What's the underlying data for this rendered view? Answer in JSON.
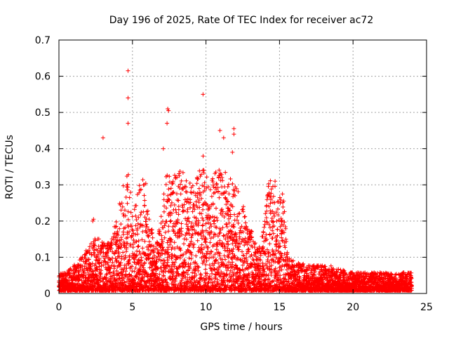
{
  "chart_data": {
    "type": "scatter",
    "title": "Day 196 of 2025, Rate Of TEC Index for receiver ac72",
    "xlabel": "GPS time / hours",
    "ylabel": "ROTI / TECUs",
    "xlim": [
      0,
      25
    ],
    "ylim": [
      0,
      0.7
    ],
    "xticks": [
      "0",
      "5",
      "10",
      "15",
      "20",
      "25"
    ],
    "yticks": [
      "0",
      "0.1",
      "0.2",
      "0.3",
      "0.4",
      "0.5",
      "0.6",
      "0.7"
    ],
    "grid": true,
    "marker": "plus",
    "color": "#ff0000",
    "envelope": [
      [
        0.0,
        0.05
      ],
      [
        0.5,
        0.05
      ],
      [
        1.0,
        0.07
      ],
      [
        1.5,
        0.09
      ],
      [
        2.0,
        0.12
      ],
      [
        2.5,
        0.15
      ],
      [
        3.0,
        0.14
      ],
      [
        3.5,
        0.13
      ],
      [
        4.0,
        0.22
      ],
      [
        4.3,
        0.28
      ],
      [
        4.6,
        0.34
      ],
      [
        4.8,
        0.32
      ],
      [
        5.0,
        0.22
      ],
      [
        5.5,
        0.3
      ],
      [
        5.8,
        0.33
      ],
      [
        6.2,
        0.2
      ],
      [
        6.6,
        0.12
      ],
      [
        7.0,
        0.22
      ],
      [
        7.3,
        0.35
      ],
      [
        7.6,
        0.3
      ],
      [
        8.0,
        0.33
      ],
      [
        8.5,
        0.33
      ],
      [
        9.0,
        0.3
      ],
      [
        9.5,
        0.32
      ],
      [
        9.8,
        0.38
      ],
      [
        10.2,
        0.3
      ],
      [
        10.6,
        0.33
      ],
      [
        11.0,
        0.4
      ],
      [
        11.5,
        0.33
      ],
      [
        12.0,
        0.3
      ],
      [
        12.5,
        0.24
      ],
      [
        13.0,
        0.18
      ],
      [
        13.5,
        0.12
      ],
      [
        14.0,
        0.2
      ],
      [
        14.3,
        0.33
      ],
      [
        14.6,
        0.3
      ],
      [
        15.0,
        0.28
      ],
      [
        15.3,
        0.26
      ],
      [
        15.6,
        0.1
      ],
      [
        16.0,
        0.08
      ],
      [
        17.0,
        0.07
      ],
      [
        18.0,
        0.07
      ],
      [
        19.0,
        0.06
      ],
      [
        20.0,
        0.05
      ],
      [
        21.0,
        0.05
      ],
      [
        22.0,
        0.05
      ],
      [
        23.0,
        0.05
      ],
      [
        24.0,
        0.05
      ]
    ],
    "outliers": [
      [
        4.7,
        0.615
      ],
      [
        4.7,
        0.54
      ],
      [
        4.7,
        0.47
      ],
      [
        7.4,
        0.51
      ],
      [
        7.45,
        0.505
      ],
      [
        7.35,
        0.47
      ],
      [
        9.8,
        0.55
      ],
      [
        11.9,
        0.455
      ],
      [
        11.9,
        0.44
      ],
      [
        10.95,
        0.45
      ],
      [
        11.2,
        0.43
      ],
      [
        11.8,
        0.39
      ],
      [
        3.0,
        0.43
      ],
      [
        2.35,
        0.205
      ],
      [
        2.3,
        0.2
      ],
      [
        15.2,
        0.275
      ],
      [
        14.7,
        0.31
      ],
      [
        7.1,
        0.4
      ],
      [
        18.5,
        0.076
      ]
    ]
  }
}
